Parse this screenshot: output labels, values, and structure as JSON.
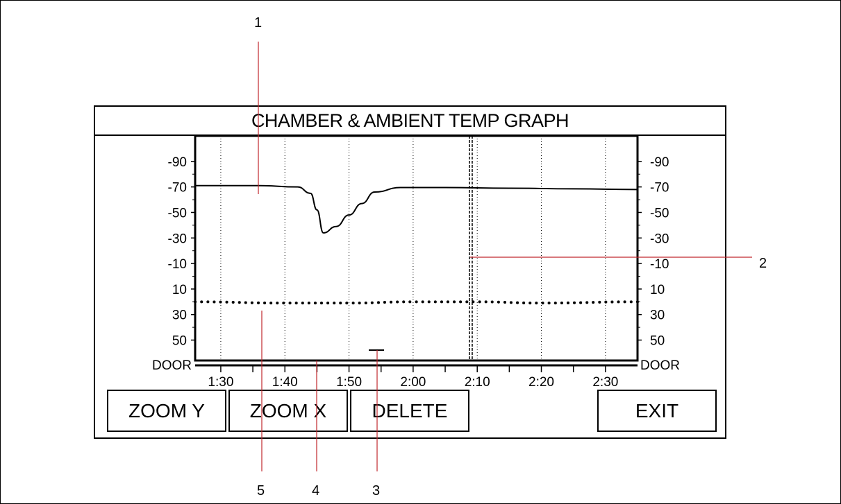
{
  "title": "CHAMBER & AMBIENT TEMP GRAPH",
  "buttons": {
    "zoom_y": "ZOOM Y",
    "zoom_x": "ZOOM X",
    "delete": "DELETE",
    "exit": "EXIT"
  },
  "callouts": [
    "1",
    "2",
    "3",
    "4",
    "5"
  ],
  "colors": {
    "callout_line": "#c0272d",
    "ink": "#000000"
  },
  "chart_data": {
    "type": "line",
    "title": "CHAMBER & AMBIENT TEMP GRAPH",
    "x_tick_labels": [
      "1:30",
      "1:40",
      "1:50",
      "2:00",
      "2:10",
      "2:20",
      "2:30"
    ],
    "y_tick_labels": [
      "-90",
      "-70",
      "-50",
      "-30",
      "-10",
      "10",
      "30",
      "50",
      "DOOR"
    ],
    "y_values": [
      -90,
      -70,
      -50,
      -30,
      -10,
      10,
      30,
      50
    ],
    "y_bottom_label": "DOOR",
    "xlim": [
      "1:26",
      "2:35"
    ],
    "ylim": [
      -110,
      66
    ],
    "grid": "vertical dotted",
    "cursor_time": "2:09",
    "series": [
      {
        "style": "solid",
        "x": [
          "1:26",
          "1:36",
          "1:42",
          "1:44",
          "1:45",
          "1:46",
          "1:48",
          "1:50",
          "1:52",
          "1:54",
          "1:58",
          "2:05",
          "2:15",
          "2:25",
          "2:35"
        ],
        "values": [
          -71,
          -71,
          -70,
          -65,
          -52,
          -34,
          -39,
          -48,
          -57,
          -66,
          -69.5,
          -69.5,
          -69,
          -68.5,
          -68
        ]
      },
      {
        "style": "dotted",
        "x": [
          "1:26",
          "1:40",
          "1:50",
          "2:00",
          "2:10",
          "2:20",
          "2:35"
        ],
        "values": [
          20,
          21,
          21,
          20,
          20,
          21,
          20
        ]
      }
    ]
  }
}
